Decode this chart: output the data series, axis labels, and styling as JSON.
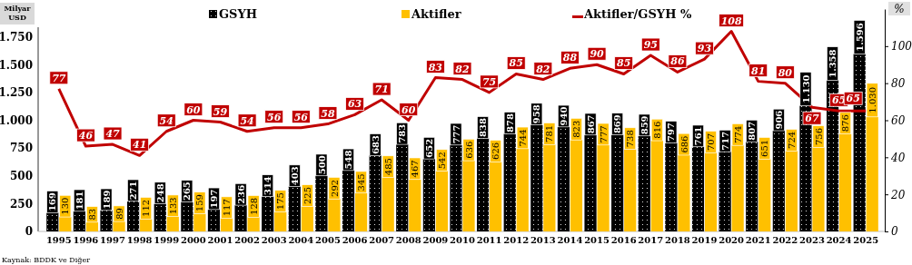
{
  "chart_data": {
    "type": "bar",
    "ylabel": "Milyar USD",
    "y2label": "%",
    "categories": [
      "1995",
      "1996",
      "1997",
      "1998",
      "1999",
      "2000",
      "2001",
      "2002",
      "2003",
      "2004",
      "2005",
      "2006",
      "2007",
      "2008",
      "2009",
      "2010",
      "2011",
      "2012",
      "2013",
      "2014",
      "2015",
      "2016",
      "2017",
      "2018",
      "2019",
      "2020",
      "2021",
      "2022",
      "2023",
      "2024",
      "2025"
    ],
    "series": [
      {
        "name": "GSYH",
        "color": "#000000",
        "values": [
          169,
          181,
          189,
          271,
          248,
          265,
          197,
          236,
          314,
          403,
          500,
          548,
          683,
          783,
          652,
          777,
          838,
          878,
          958,
          940,
          867,
          869,
          859,
          797,
          761,
          717,
          807,
          906,
          1130,
          1358,
          1596
        ],
        "value_labels": [
          "169",
          "181",
          "189",
          "271",
          "248",
          "265",
          "197",
          "236",
          "314",
          "403",
          "500",
          "548",
          "683",
          "783",
          "652",
          "777",
          "838",
          "878",
          "958",
          "940",
          "867",
          "869",
          "859",
          "797",
          "761",
          "717",
          "807",
          "906",
          "1.130",
          "1.358",
          "1.596"
        ]
      },
      {
        "name": "Aktifler",
        "color": "#ffc000",
        "values": [
          130,
          83,
          89,
          112,
          133,
          159,
          117,
          128,
          175,
          225,
          292,
          345,
          485,
          467,
          542,
          636,
          626,
          744,
          781,
          823,
          777,
          738,
          816,
          686,
          707,
          774,
          651,
          724,
          756,
          876,
          1030
        ],
        "value_labels": [
          "130",
          "83",
          "89",
          "112",
          "133",
          "159",
          "117",
          "128",
          "175",
          "225",
          "292",
          "345",
          "485",
          "467",
          "542",
          "636",
          "626",
          "744",
          "781",
          "823",
          "777",
          "738",
          "816",
          "686",
          "707",
          "774",
          "651",
          "724",
          "756",
          "876",
          "1.030"
        ]
      },
      {
        "name": "Aktifler/GSYH %",
        "type": "line",
        "axis": "y2",
        "color": "#c00000",
        "values": [
          77,
          46,
          47,
          41,
          54,
          60,
          59,
          54,
          56,
          56,
          58,
          63,
          71,
          60,
          83,
          82,
          75,
          85,
          82,
          88,
          90,
          85,
          95,
          86,
          93,
          108,
          81,
          80,
          67,
          65,
          65
        ],
        "value_labels": [
          "77",
          "46",
          "47",
          "41",
          "54",
          "60",
          "59",
          "54",
          "56",
          "56",
          "58",
          "63",
          "71",
          "60",
          "83",
          "82",
          "75",
          "85",
          "82",
          "88",
          "90",
          "85",
          "95",
          "86",
          "93",
          "108",
          "81",
          "80",
          "67",
          "65",
          "65"
        ]
      }
    ],
    "ylim": [
      0,
      2000
    ],
    "yticks": [
      0,
      {
        "value": 250,
        "label": "250"
      },
      {
        "value": 500,
        "label": "500"
      },
      {
        "value": 750,
        "label": "750"
      },
      {
        "value": 1000,
        "label": "1.000"
      },
      {
        "value": 1250,
        "label": "1.250"
      },
      {
        "value": 1500,
        "label": "1.500"
      },
      {
        "value": 1750,
        "label": "1.750"
      }
    ],
    "y2lim": [
      0,
      120
    ],
    "y2ticks": [
      0,
      20,
      40,
      60,
      80,
      100
    ],
    "legend": "top",
    "grid": false,
    "marker": "none",
    "line_style": "solid",
    "annotations": [
      "Kaynak: BDDK ve Diğer"
    ]
  }
}
